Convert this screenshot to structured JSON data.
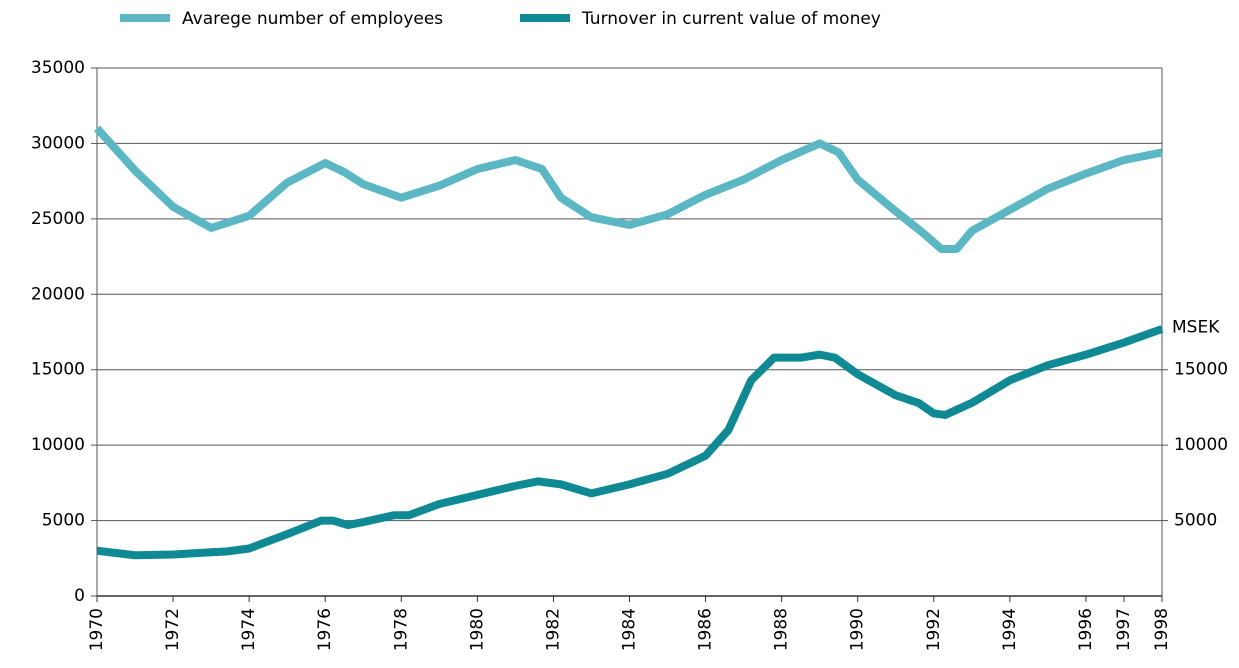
{
  "chart_data": {
    "type": "line",
    "y2label": "MSEK",
    "xlim": [
      1970,
      1998
    ],
    "xticks": [
      1970,
      1972,
      1974,
      1976,
      1978,
      1980,
      1982,
      1984,
      1986,
      1988,
      1990,
      1992,
      1994,
      1996,
      1997,
      1998
    ],
    "ylim": [
      0,
      35000
    ],
    "yticks": [
      0,
      5000,
      10000,
      15000,
      20000,
      25000,
      30000,
      35000
    ],
    "y2lim": [
      0,
      35000
    ],
    "y2ticks": [
      5000,
      10000,
      15000
    ],
    "grid": true,
    "legend": "top",
    "series": [
      {
        "name": "Avarege number of employees",
        "color": "#5bb7c3",
        "x": [
          1970,
          1971,
          1972,
          1973,
          1974,
          1975,
          1976,
          1976.5,
          1977,
          1978,
          1979,
          1980,
          1981,
          1981.7,
          1982.2,
          1983,
          1984,
          1985,
          1986,
          1987,
          1988,
          1989,
          1989.5,
          1990,
          1991,
          1991.7,
          1992.2,
          1992.6,
          1993,
          1994,
          1995,
          1996,
          1997,
          1998
        ],
        "values": [
          31000,
          28200,
          25800,
          24400,
          25200,
          27400,
          28700,
          28100,
          27300,
          26400,
          27200,
          28300,
          28900,
          28300,
          26400,
          25100,
          24600,
          25300,
          26600,
          27600,
          28900,
          30000,
          29400,
          27600,
          25500,
          24100,
          23000,
          23000,
          24200,
          25600,
          27000,
          28000,
          28900,
          29400
        ]
      },
      {
        "name": "Turnover in current value of money",
        "color": "#0f8a95",
        "axis": "y2",
        "x": [
          1970,
          1971,
          1972,
          1973,
          1973.4,
          1974,
          1975,
          1975.9,
          1976.2,
          1976.6,
          1977,
          1977.8,
          1978.2,
          1979,
          1980,
          1981,
          1981.6,
          1982.2,
          1983,
          1984,
          1985,
          1986,
          1986.6,
          1987.2,
          1987.8,
          1988.5,
          1989,
          1989.4,
          1990,
          1991,
          1991.6,
          1992,
          1992.3,
          1993,
          1994,
          1995,
          1996,
          1997,
          1998
        ],
        "values": [
          3000,
          2700,
          2750,
          2900,
          2950,
          3150,
          4100,
          5000,
          5000,
          4700,
          4900,
          5350,
          5350,
          6100,
          6700,
          7300,
          7600,
          7400,
          6800,
          7400,
          8100,
          9300,
          11000,
          14300,
          15800,
          15800,
          16000,
          15800,
          14700,
          13300,
          12800,
          12100,
          12000,
          12800,
          14300,
          15300,
          16000,
          16800,
          17700
        ]
      }
    ]
  }
}
